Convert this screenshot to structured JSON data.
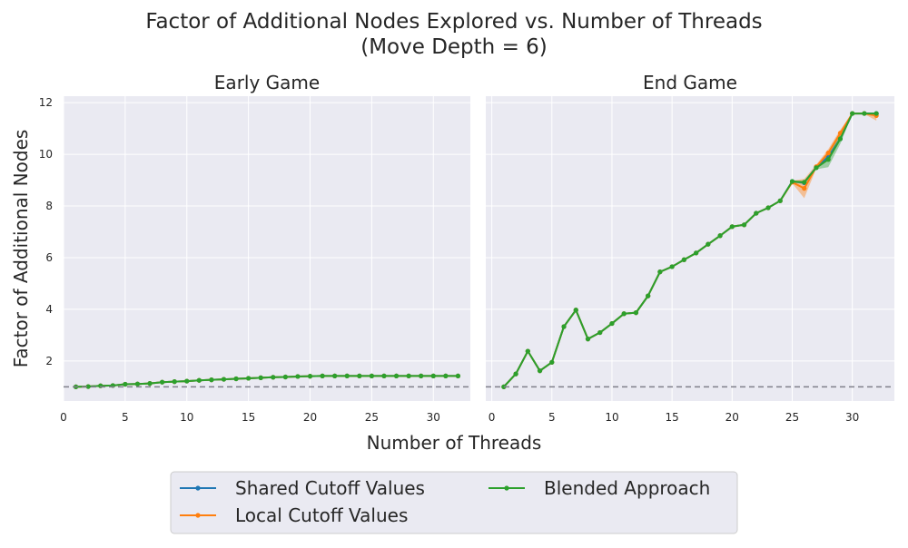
{
  "figure": {
    "title_line1": "Factor of Additional Nodes Explored vs. Number of Threads",
    "title_line2": "(Move Depth = 6)",
    "xlabel": "Number of Threads",
    "ylabel": "Factor of Additional Nodes"
  },
  "colors": {
    "shared": "#1f77b4",
    "local": "#ff7f0e",
    "blended": "#2ca02c",
    "panel_bg": "#eaeaf2",
    "grid": "#ffffff",
    "baseline": "#7f7f8a"
  },
  "legend": {
    "placement": "bottom-center",
    "entries": [
      "Shared Cutoff Values",
      "Local Cutoff Values",
      "Blended Approach"
    ]
  },
  "chart_data": [
    {
      "type": "line",
      "title": "Early Game",
      "x": [
        1,
        2,
        3,
        4,
        5,
        6,
        7,
        8,
        9,
        10,
        11,
        12,
        13,
        14,
        15,
        16,
        17,
        18,
        19,
        20,
        21,
        22,
        23,
        24,
        25,
        26,
        27,
        28,
        29,
        30,
        31,
        32
      ],
      "xlim": [
        0,
        33
      ],
      "ylim": [
        0.45,
        12.25
      ],
      "xticks": [
        0,
        5,
        10,
        15,
        20,
        25,
        30
      ],
      "yticks": [
        2,
        4,
        6,
        8,
        10,
        12
      ],
      "baseline": 1,
      "grid": true,
      "series": [
        {
          "name": "Shared Cutoff Values",
          "values": [
            1.0,
            1.01,
            1.04,
            1.05,
            1.1,
            1.11,
            1.13,
            1.18,
            1.2,
            1.22,
            1.25,
            1.27,
            1.29,
            1.31,
            1.33,
            1.35,
            1.37,
            1.38,
            1.4,
            1.41,
            1.42,
            1.42,
            1.42,
            1.42,
            1.42,
            1.42,
            1.42,
            1.42,
            1.42,
            1.42,
            1.42,
            1.42
          ]
        },
        {
          "name": "Local Cutoff Values",
          "values": [
            1.0,
            1.01,
            1.04,
            1.05,
            1.1,
            1.11,
            1.13,
            1.18,
            1.2,
            1.22,
            1.25,
            1.27,
            1.29,
            1.31,
            1.33,
            1.35,
            1.37,
            1.38,
            1.4,
            1.41,
            1.42,
            1.42,
            1.42,
            1.42,
            1.42,
            1.42,
            1.42,
            1.42,
            1.42,
            1.42,
            1.42,
            1.42
          ]
        },
        {
          "name": "Blended Approach",
          "values": [
            1.0,
            1.01,
            1.04,
            1.05,
            1.1,
            1.11,
            1.13,
            1.18,
            1.2,
            1.22,
            1.25,
            1.27,
            1.29,
            1.31,
            1.33,
            1.35,
            1.37,
            1.38,
            1.4,
            1.41,
            1.42,
            1.42,
            1.42,
            1.42,
            1.42,
            1.42,
            1.42,
            1.42,
            1.42,
            1.42,
            1.42,
            1.42
          ]
        }
      ],
      "bands": []
    },
    {
      "type": "line",
      "title": "End Game",
      "x": [
        1,
        2,
        3,
        4,
        5,
        6,
        7,
        8,
        9,
        10,
        11,
        12,
        13,
        14,
        15,
        16,
        17,
        18,
        19,
        20,
        21,
        22,
        23,
        24,
        25,
        26,
        27,
        28,
        29,
        30,
        31,
        32
      ],
      "xlim": [
        -0.5,
        33.5
      ],
      "ylim": [
        0.45,
        12.25
      ],
      "xticks": [
        0,
        5,
        10,
        15,
        20,
        25,
        30
      ],
      "yticks": [
        2,
        4,
        6,
        8,
        10,
        12
      ],
      "baseline": 1,
      "grid": true,
      "series": [
        {
          "name": "Shared Cutoff Values",
          "values": [
            1.0,
            1.5,
            2.38,
            1.62,
            1.95,
            3.33,
            3.97,
            2.85,
            3.1,
            3.45,
            3.83,
            3.87,
            4.52,
            5.45,
            5.65,
            5.92,
            6.18,
            6.52,
            6.85,
            7.2,
            7.27,
            7.72,
            7.93,
            8.2,
            8.95,
            8.9,
            9.5,
            9.9,
            10.6,
            11.58,
            11.58,
            11.58
          ]
        },
        {
          "name": "Local Cutoff Values",
          "values": [
            1.0,
            1.5,
            2.38,
            1.62,
            1.95,
            3.33,
            3.97,
            2.85,
            3.1,
            3.45,
            3.83,
            3.87,
            4.52,
            5.45,
            5.65,
            5.92,
            6.18,
            6.52,
            6.85,
            7.2,
            7.27,
            7.72,
            7.93,
            8.2,
            8.92,
            8.68,
            9.52,
            10.05,
            10.82,
            11.58,
            11.58,
            11.5
          ]
        },
        {
          "name": "Blended Approach",
          "values": [
            1.0,
            1.5,
            2.38,
            1.62,
            1.95,
            3.33,
            3.97,
            2.85,
            3.1,
            3.45,
            3.83,
            3.87,
            4.52,
            5.45,
            5.65,
            5.92,
            6.18,
            6.52,
            6.85,
            7.2,
            7.27,
            7.72,
            7.93,
            8.2,
            8.95,
            8.92,
            9.48,
            9.8,
            10.6,
            11.58,
            11.58,
            11.58
          ]
        }
      ],
      "bands": [
        {
          "name": "Local Cutoff Values",
          "x": [
            25,
            26,
            27,
            28,
            29,
            30,
            31,
            32
          ],
          "lower": [
            8.88,
            8.3,
            9.45,
            9.85,
            10.65,
            11.58,
            11.56,
            11.3
          ],
          "upper": [
            8.98,
            9.05,
            9.6,
            10.2,
            10.95,
            11.6,
            11.62,
            11.62
          ]
        },
        {
          "name": "Blended Approach",
          "x": [
            25,
            26,
            27,
            28,
            29,
            30,
            31,
            32
          ],
          "lower": [
            8.9,
            8.85,
            9.42,
            9.5,
            10.4,
            11.58,
            11.56,
            11.56
          ],
          "upper": [
            8.98,
            8.98,
            9.55,
            10.0,
            10.8,
            11.6,
            11.6,
            11.6
          ]
        }
      ]
    }
  ]
}
